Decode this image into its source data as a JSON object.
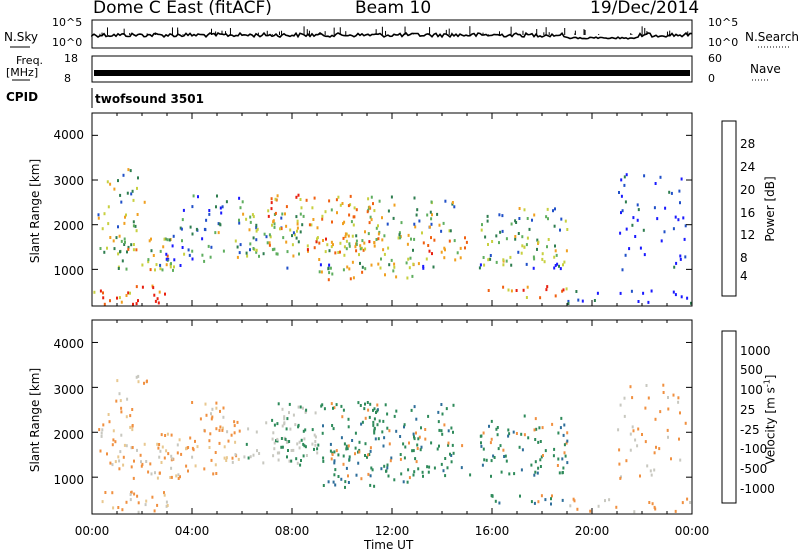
{
  "header": {
    "title": "Dome C East (fitACF)",
    "beam": "Beam 10",
    "date": "19/Dec/2014"
  },
  "top_panels": {
    "nsky_label": "N.Sky",
    "nsky_ticks": [
      "10^5",
      "10^0"
    ],
    "nsearch_label": "N.Search",
    "nsearch_ticks": [
      "10^5",
      "10^0"
    ],
    "freq_label": "Freq.",
    "freq_unit": "[MHz]",
    "freq_ticks": [
      "18",
      "8"
    ],
    "nave_label": "Nave",
    "nave_ticks": [
      "60",
      "0"
    ],
    "cpid_label": "CPID",
    "cpid_value": "twofsound 3501"
  },
  "chart_data": [
    {
      "type": "heatmap",
      "name": "Power",
      "ylabel": "Slant Range [km]",
      "xlabel": "Time UT",
      "x_ticks": [
        "00:00",
        "04:00",
        "08:00",
        "12:00",
        "16:00",
        "20:00",
        "00:00"
      ],
      "y_ticks": [
        1000,
        2000,
        3000,
        4000
      ],
      "ylim": [
        180,
        4500
      ],
      "colorbar_label": "Power [dB]",
      "colorbar_ticks": [
        4,
        8,
        12,
        16,
        20,
        24,
        28
      ],
      "colorbar_range": [
        0,
        30
      ],
      "colors": [
        "#1a1aff",
        "#2050c8",
        "#2e7d4f",
        "#5fae5f",
        "#c8d040",
        "#f0a020",
        "#f06010",
        "#e82010"
      ]
    },
    {
      "type": "heatmap",
      "name": "Velocity",
      "ylabel": "Slant Range [km]",
      "xlabel": "Time UT",
      "x_ticks": [
        "00:00",
        "04:00",
        "08:00",
        "12:00",
        "16:00",
        "20:00",
        "00:00"
      ],
      "y_ticks": [
        1000,
        2000,
        3000,
        4000
      ],
      "ylim": [
        180,
        4500
      ],
      "colorbar_label": "Velocity [m s",
      "colorbar_label_sup": "-1",
      "colorbar_label_tail": "]",
      "colorbar_ticks": [
        "1000",
        "500",
        "100",
        "25",
        "-25",
        "-100",
        "-500",
        "-1000"
      ],
      "colors": [
        "#2840c0",
        "#2e6e9a",
        "#2e8a5a",
        "#6cc040",
        "#c8c8c0",
        "#e8c890",
        "#f09040",
        "#f06010",
        "#e02010"
      ]
    }
  ]
}
